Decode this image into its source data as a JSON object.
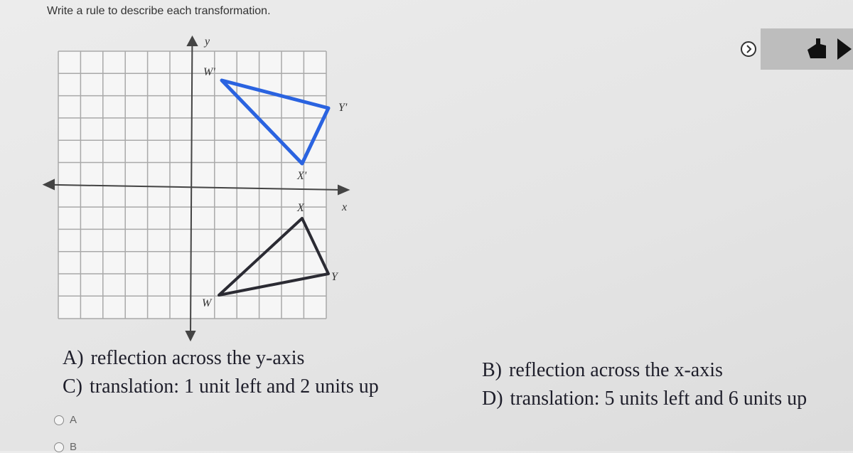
{
  "header": {
    "instruction": "Write a rule to describe each transformation."
  },
  "graph": {
    "labels": {
      "y_axis": "y",
      "x_axis": "x",
      "w_prime": "W'",
      "y_prime": "Y'",
      "x_prime": "X'",
      "x_point": "X",
      "y_point": "Y",
      "w_point": "W"
    }
  },
  "choices": [
    {
      "letter": "A)",
      "text": "reflection across the y-axis"
    },
    {
      "letter": "B)",
      "text": "reflection across the x-axis"
    },
    {
      "letter": "C)",
      "text": "translation: 1 unit left and 2 units up"
    },
    {
      "letter": "D)",
      "text": "translation: 5 units left and 6 units up"
    }
  ],
  "options": [
    "A",
    "B"
  ]
}
